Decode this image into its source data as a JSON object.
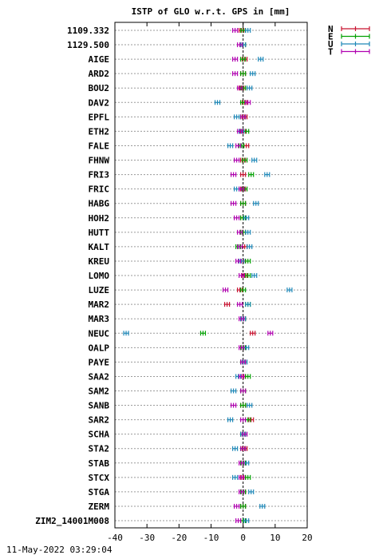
{
  "chart_data": {
    "type": "scatter",
    "title": "ISTP of GLO w.r.t. GPS in [mm]",
    "footer": "11-May-2022 03:29:04",
    "xlim": [
      -40,
      20
    ],
    "xticks": [
      "-40",
      "-30",
      "-20",
      "-10",
      "0",
      "10",
      "20"
    ],
    "legend_position": "top-right",
    "categories": [
      "1109.332",
      "1129.500",
      "AIGE",
      "ARD2",
      "BOU2",
      "DAV2",
      "EPFL",
      "ETH2",
      "FALE",
      "FHNW",
      "FRI3",
      "FRIC",
      "HABG",
      "HOH2",
      "HUTT",
      "KALT",
      "KREU",
      "LOMO",
      "LUZE",
      "MAR2",
      "MAR3",
      "NEUC",
      "OALP",
      "PAYE",
      "SAA2",
      "SAM2",
      "SANB",
      "SAR2",
      "SCHA",
      "STA2",
      "STAB",
      "STCX",
      "STGA",
      "ZERM",
      "ZIM2_14001M008"
    ],
    "series": [
      {
        "name": "N",
        "color": "#c8102e",
        "values": [
          -0.5,
          0,
          0.5,
          0,
          -0.5,
          0.5,
          0.5,
          0,
          1,
          0,
          0,
          0,
          0,
          0,
          0,
          0.5,
          0,
          0.5,
          -1,
          -5,
          0,
          3,
          0,
          0,
          0,
          0,
          0,
          2.5,
          0,
          0.5,
          0,
          0,
          0,
          0,
          0
        ]
      },
      {
        "name": "E",
        "color": "#00a000",
        "values": [
          0,
          0,
          0,
          0,
          0,
          0,
          0,
          1,
          -0.5,
          0.5,
          2.5,
          0.5,
          0,
          0,
          0,
          -1.5,
          1.5,
          1.5,
          0,
          1.5,
          0,
          -12.5,
          0,
          0,
          1.5,
          0,
          0,
          1.5,
          0,
          0,
          0,
          1.5,
          0,
          0,
          0
        ]
      },
      {
        "name": "U",
        "color": "#1e88b8",
        "values": [
          1.5,
          0,
          5.5,
          3,
          2,
          -8,
          -2,
          -0.5,
          -4,
          3.5,
          7.5,
          -2,
          4,
          1,
          1.5,
          2,
          -0.5,
          3.5,
          14.5,
          1.5,
          0,
          -36.5,
          1,
          0.5,
          -1.5,
          -3,
          2,
          -4,
          0,
          -2.5,
          1,
          -2.5,
          2.5,
          6,
          1
        ]
      },
      {
        "name": "T",
        "color": "#b000b0",
        "values": [
          -2.5,
          -1,
          -2.5,
          -2.5,
          -1,
          1.5,
          0,
          -1,
          -1.5,
          -2,
          -3,
          -0.5,
          -3,
          -2,
          -1,
          -1,
          -1.5,
          -0.5,
          -5.5,
          -1,
          -0.5,
          8.5,
          -0.5,
          0,
          -0.5,
          0,
          -3,
          0,
          0.5,
          0,
          -0.5,
          -0.5,
          -0.5,
          -2,
          -1.5
        ]
      }
    ]
  }
}
